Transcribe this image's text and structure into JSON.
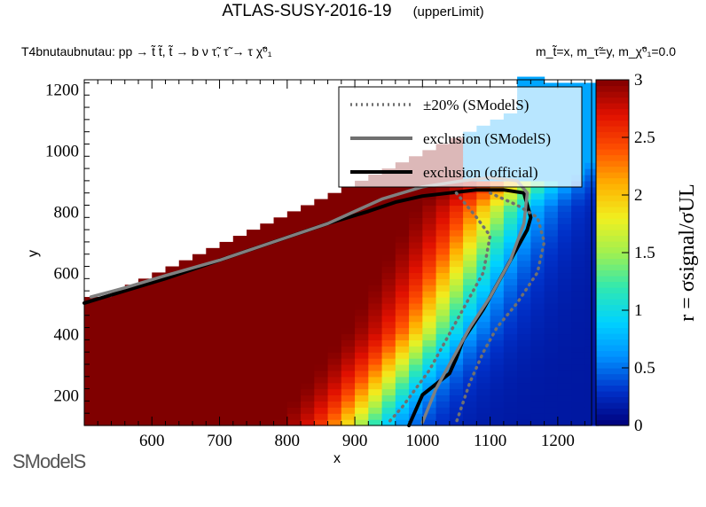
{
  "header": {
    "title": "ATLAS-SUSY-2016-19",
    "subtitle": "(upperLimit)",
    "process": "T4bnutaubnutau: pp → t̃ t̃, t̃ → b ν τ̃, τ̃ → τ χ̃⁰₁",
    "masses": "m_t̃=x, m_τ̃=y, m_χ̃⁰₁=0.0"
  },
  "logo": {
    "text": "SModelS"
  },
  "chart_data": {
    "type": "heatmap",
    "title": "ATLAS-SUSY-2016-19",
    "xlabel": "x",
    "ylabel": "y",
    "zlabel": "r = σsignal/σUL",
    "xlim": [
      500,
      1250
    ],
    "ylim": [
      100,
      1230
    ],
    "zlim": [
      0,
      3
    ],
    "x_ticks": [
      "600",
      "700",
      "800",
      "900",
      "1000",
      "1100",
      "1200"
    ],
    "y_ticks": [
      "200",
      "400",
      "600",
      "800",
      "1000",
      "1200"
    ],
    "z_ticks": [
      "0",
      "0.5",
      "1",
      "1.5",
      "2",
      "2.5",
      "3"
    ],
    "colormap": [
      "#00007a",
      "#0030c8",
      "#0090ff",
      "#00d2ff",
      "#30e8b0",
      "#a0f050",
      "#f0f020",
      "#ffb000",
      "#ff5000",
      "#e01000",
      "#800000"
    ],
    "grid_step": {
      "x": 20,
      "y": 20
    },
    "region_notes": {
      "excluded_dark_red_below_diagonal": 3.0,
      "transition_near_x": 1000
    },
    "legend": {
      "placement": "top-right",
      "entries": [
        {
          "label": "±20% (SModelS)",
          "style": "dotted",
          "color": "#707070"
        },
        {
          "label": "exclusion (SModelS)",
          "style": "solid",
          "color": "#707070"
        },
        {
          "label": "exclusion (official)",
          "style": "solid",
          "color": "#000000"
        }
      ]
    },
    "series": [
      {
        "name": "exclusion (official)",
        "x": [
          500,
          560,
          620,
          700,
          780,
          860,
          920,
          960,
          1000,
          1040,
          1080,
          1120,
          1150,
          1160,
          1155,
          1140,
          1120,
          1090,
          1060,
          1050,
          1040,
          1000,
          980
        ],
        "y": [
          500,
          540,
          580,
          640,
          700,
          760,
          800,
          830,
          850,
          860,
          870,
          870,
          860,
          780,
          740,
          680,
          600,
          480,
          380,
          320,
          270,
          200,
          100
        ]
      },
      {
        "name": "exclusion (SModelS)",
        "x": [
          510,
          560,
          620,
          700,
          780,
          860,
          900,
          940,
          1000,
          1060,
          1100,
          1140,
          1155,
          1150,
          1130,
          1100,
          1070,
          1050,
          1020,
          1000
        ],
        "y": [
          520,
          550,
          590,
          640,
          700,
          760,
          800,
          840,
          880,
          900,
          910,
          900,
          860,
          760,
          640,
          520,
          420,
          340,
          220,
          110
        ]
      },
      {
        "name": "±20% (SModelS) upper",
        "x": [
          1100,
          1140,
          1170,
          1180,
          1170,
          1140,
          1110,
          1090,
          1070,
          1050
        ],
        "y": [
          860,
          820,
          780,
          700,
          600,
          500,
          420,
          340,
          240,
          110
        ]
      },
      {
        "name": "±20% (SModelS) lower",
        "x": [
          1050,
          1080,
          1100,
          1090,
          1060,
          1030,
          1010,
          990,
          970,
          950
        ],
        "y": [
          860,
          780,
          720,
          600,
          480,
          360,
          280,
          220,
          160,
          110
        ]
      }
    ]
  }
}
